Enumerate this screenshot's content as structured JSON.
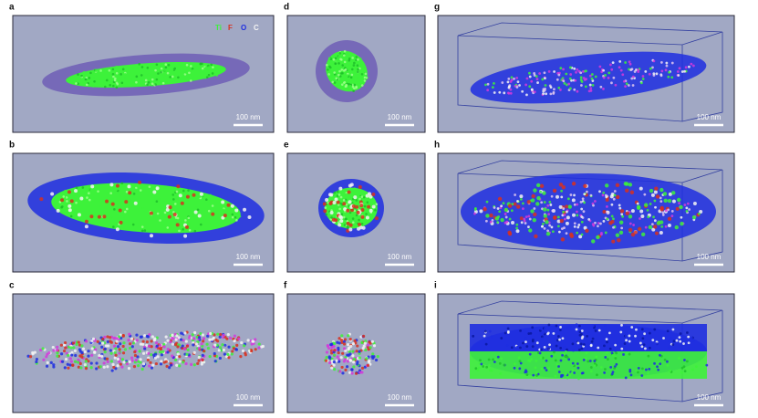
{
  "figure": {
    "legend": [
      "Ti",
      "F",
      "O",
      "C"
    ],
    "panels": [
      {
        "label": "a",
        "scale_bar": "100 nm"
      },
      {
        "label": "b",
        "scale_bar": "100 nm"
      },
      {
        "label": "c",
        "scale_bar": "100 nm"
      },
      {
        "label": "d",
        "scale_bar": "100 nm"
      },
      {
        "label": "e",
        "scale_bar": "100 nm"
      },
      {
        "label": "f",
        "scale_bar": "100 nm"
      },
      {
        "label": "g",
        "scale_bar": "100 nm"
      },
      {
        "label": "h",
        "scale_bar": "100 nm"
      },
      {
        "label": "i",
        "scale_bar": "100 nm"
      }
    ]
  }
}
